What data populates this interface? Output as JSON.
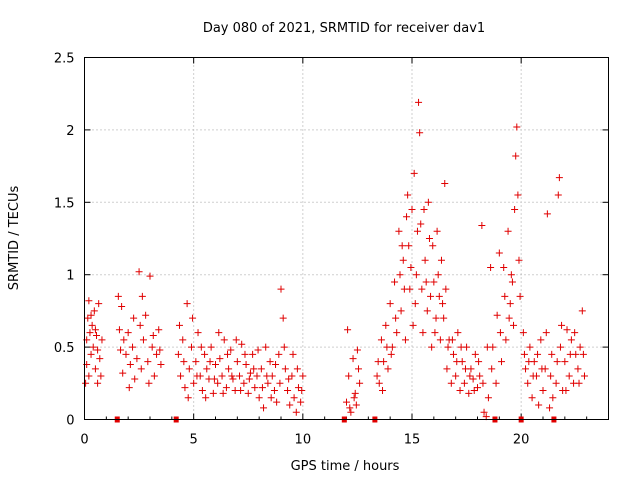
{
  "chart_data": {
    "type": "scatter",
    "title": "Day 080 of 2021, SRMTID for receiver dav1",
    "xlabel": "GPS time / hours",
    "ylabel": "SRMTID / TECUs",
    "xlim": [
      0,
      24
    ],
    "ylim": [
      0,
      2.5
    ],
    "x_ticks": [
      0,
      5,
      10,
      15,
      20
    ],
    "x_tick_labels": [
      "0",
      "5",
      "10",
      "15",
      "20"
    ],
    "y_ticks": [
      0,
      0.5,
      1,
      1.5,
      2,
      2.5
    ],
    "y_tick_labels": [
      "0",
      "0.5",
      "1",
      "1.5",
      "2",
      "2.5"
    ],
    "grid": true,
    "marker": "+",
    "color": "#e00000",
    "series": [
      {
        "name": "dav1",
        "points": [
          [
            0.05,
            0.25
          ],
          [
            0.1,
            0.55
          ],
          [
            0.15,
            0.7
          ],
          [
            0.2,
            0.82
          ],
          [
            0.25,
            0.6
          ],
          [
            0.3,
            0.45
          ],
          [
            0.35,
            0.65
          ],
          [
            0.4,
            0.5
          ],
          [
            0.45,
            0.75
          ],
          [
            0.5,
            0.35
          ],
          [
            0.55,
            0.58
          ],
          [
            0.6,
            0.48
          ],
          [
            0.65,
            0.8
          ],
          [
            0.7,
            0.42
          ],
          [
            0.75,
            0.3
          ],
          [
            0.8,
            0.55
          ],
          [
            0.1,
            0.38
          ],
          [
            0.2,
            0.3
          ],
          [
            0.3,
            0.72
          ],
          [
            0.5,
            0.62
          ],
          [
            0.6,
            0.25
          ],
          [
            1.5,
            0.0
          ],
          [
            1.55,
            0.85
          ],
          [
            1.6,
            0.62
          ],
          [
            1.65,
            0.48
          ],
          [
            1.7,
            0.78
          ],
          [
            1.8,
            0.55
          ],
          [
            1.9,
            0.45
          ],
          [
            2.0,
            0.6
          ],
          [
            2.1,
            0.38
          ],
          [
            2.2,
            0.5
          ],
          [
            2.3,
            0.28
          ],
          [
            2.4,
            0.42
          ],
          [
            2.5,
            1.02
          ],
          [
            2.55,
            0.65
          ],
          [
            2.6,
            0.35
          ],
          [
            2.7,
            0.55
          ],
          [
            2.8,
            0.72
          ],
          [
            2.9,
            0.4
          ],
          [
            3.0,
            0.99
          ],
          [
            3.1,
            0.5
          ],
          [
            3.2,
            0.3
          ],
          [
            3.3,
            0.45
          ],
          [
            3.4,
            0.62
          ],
          [
            3.5,
            0.38
          ],
          [
            1.75,
            0.32
          ],
          [
            2.05,
            0.22
          ],
          [
            2.25,
            0.7
          ],
          [
            2.65,
            0.85
          ],
          [
            2.95,
            0.25
          ],
          [
            3.15,
            0.58
          ],
          [
            3.45,
            0.48
          ],
          [
            4.2,
            0.0
          ],
          [
            4.3,
            0.45
          ],
          [
            4.4,
            0.3
          ],
          [
            4.5,
            0.55
          ],
          [
            4.6,
            0.22
          ],
          [
            4.7,
            0.8
          ],
          [
            4.8,
            0.35
          ],
          [
            4.9,
            0.5
          ],
          [
            5.0,
            0.25
          ],
          [
            5.1,
            0.4
          ],
          [
            5.2,
            0.6
          ],
          [
            5.3,
            0.3
          ],
          [
            5.4,
            0.2
          ],
          [
            5.5,
            0.45
          ],
          [
            5.6,
            0.35
          ],
          [
            5.7,
            0.28
          ],
          [
            5.8,
            0.5
          ],
          [
            5.9,
            0.18
          ],
          [
            6.0,
            0.38
          ],
          [
            6.1,
            0.25
          ],
          [
            6.2,
            0.42
          ],
          [
            6.3,
            0.3
          ],
          [
            6.4,
            0.55
          ],
          [
            6.5,
            0.22
          ],
          [
            6.6,
            0.35
          ],
          [
            6.7,
            0.48
          ],
          [
            6.8,
            0.28
          ],
          [
            6.9,
            0.2
          ],
          [
            7.0,
            0.4
          ],
          [
            7.1,
            0.3
          ],
          [
            7.2,
            0.52
          ],
          [
            7.3,
            0.25
          ],
          [
            7.4,
            0.38
          ],
          [
            7.5,
            0.18
          ],
          [
            7.6,
            0.32
          ],
          [
            7.7,
            0.45
          ],
          [
            7.8,
            0.22
          ],
          [
            7.9,
            0.3
          ],
          [
            8.0,
            0.15
          ],
          [
            8.1,
            0.35
          ],
          [
            8.2,
            0.08
          ],
          [
            8.3,
            0.5
          ],
          [
            8.4,
            0.25
          ],
          [
            8.5,
            0.4
          ],
          [
            8.6,
            0.3
          ],
          [
            8.7,
            0.2
          ],
          [
            8.8,
            0.12
          ],
          [
            8.9,
            0.45
          ],
          [
            9.0,
            0.9
          ],
          [
            9.1,
            0.7
          ],
          [
            9.2,
            0.35
          ],
          [
            9.3,
            0.2
          ],
          [
            9.4,
            0.1
          ],
          [
            9.5,
            0.3
          ],
          [
            9.6,
            0.15
          ],
          [
            9.7,
            0.05
          ],
          [
            9.8,
            0.22
          ],
          [
            9.9,
            0.12
          ],
          [
            10.0,
            0.3
          ],
          [
            4.35,
            0.65
          ],
          [
            4.55,
            0.4
          ],
          [
            4.75,
            0.15
          ],
          [
            4.95,
            0.7
          ],
          [
            5.15,
            0.3
          ],
          [
            5.35,
            0.5
          ],
          [
            5.55,
            0.15
          ],
          [
            5.75,
            0.4
          ],
          [
            5.95,
            0.28
          ],
          [
            6.15,
            0.6
          ],
          [
            6.35,
            0.18
          ],
          [
            6.55,
            0.45
          ],
          [
            6.75,
            0.3
          ],
          [
            6.95,
            0.55
          ],
          [
            7.15,
            0.2
          ],
          [
            7.35,
            0.45
          ],
          [
            7.55,
            0.28
          ],
          [
            7.75,
            0.35
          ],
          [
            7.95,
            0.48
          ],
          [
            8.15,
            0.22
          ],
          [
            8.35,
            0.3
          ],
          [
            8.55,
            0.15
          ],
          [
            8.75,
            0.38
          ],
          [
            8.95,
            0.25
          ],
          [
            9.15,
            0.5
          ],
          [
            9.35,
            0.28
          ],
          [
            9.55,
            0.45
          ],
          [
            9.75,
            0.35
          ],
          [
            9.95,
            0.2
          ],
          [
            11.9,
            0.0
          ],
          [
            12.0,
            0.12
          ],
          [
            12.05,
            0.62
          ],
          [
            12.1,
            0.3
          ],
          [
            12.2,
            0.05
          ],
          [
            12.3,
            0.42
          ],
          [
            12.4,
            0.18
          ],
          [
            12.5,
            0.48
          ],
          [
            12.6,
            0.25
          ],
          [
            12.15,
            0.08
          ],
          [
            12.35,
            0.15
          ],
          [
            12.45,
            0.1
          ],
          [
            12.55,
            0.35
          ],
          [
            13.3,
            0.0
          ],
          [
            13.4,
            0.3
          ],
          [
            13.5,
            0.25
          ],
          [
            13.6,
            0.55
          ],
          [
            13.7,
            0.4
          ],
          [
            13.8,
            0.65
          ],
          [
            13.9,
            0.35
          ],
          [
            14.0,
            0.8
          ],
          [
            14.1,
            0.5
          ],
          [
            14.2,
            0.95
          ],
          [
            14.3,
            0.6
          ],
          [
            14.4,
            1.3
          ],
          [
            14.5,
            0.75
          ],
          [
            14.6,
            1.1
          ],
          [
            14.7,
            0.55
          ],
          [
            14.8,
            1.55
          ],
          [
            14.9,
            0.9
          ],
          [
            15.0,
            1.45
          ],
          [
            15.05,
            0.65
          ],
          [
            15.1,
            1.7
          ],
          [
            15.15,
            0.8
          ],
          [
            15.2,
            1.0
          ],
          [
            15.25,
            1.3
          ],
          [
            15.3,
            2.19
          ],
          [
            15.35,
            1.98
          ],
          [
            15.4,
            1.35
          ],
          [
            15.45,
            0.9
          ],
          [
            15.5,
            0.6
          ],
          [
            15.6,
            1.1
          ],
          [
            15.7,
            0.75
          ],
          [
            15.8,
            1.25
          ],
          [
            15.9,
            0.5
          ],
          [
            16.0,
            0.95
          ],
          [
            16.1,
            0.7
          ],
          [
            16.2,
            1.0
          ],
          [
            16.3,
            0.55
          ],
          [
            16.4,
            0.8
          ],
          [
            16.5,
            1.63
          ],
          [
            16.6,
            0.35
          ],
          [
            16.7,
            0.55
          ],
          [
            16.8,
            0.25
          ],
          [
            16.9,
            0.45
          ],
          [
            17.0,
            0.3
          ],
          [
            17.1,
            0.6
          ],
          [
            17.2,
            0.2
          ],
          [
            17.3,
            0.4
          ],
          [
            17.4,
            0.25
          ],
          [
            17.5,
            0.5
          ],
          [
            17.6,
            0.18
          ],
          [
            17.7,
            0.35
          ],
          [
            17.8,
            0.28
          ],
          [
            17.9,
            0.45
          ],
          [
            18.0,
            0.22
          ],
          [
            18.1,
            0.3
          ],
          [
            18.2,
            1.34
          ],
          [
            18.3,
            0.05
          ],
          [
            18.4,
            0.02
          ],
          [
            18.5,
            0.15
          ],
          [
            18.6,
            1.05
          ],
          [
            18.7,
            0.5
          ],
          [
            18.8,
            0.0
          ],
          [
            18.9,
            0.72
          ],
          [
            19.0,
            1.15
          ],
          [
            19.1,
            0.4
          ],
          [
            19.2,
            1.05
          ],
          [
            19.3,
            0.55
          ],
          [
            19.4,
            1.3
          ],
          [
            19.5,
            0.8
          ],
          [
            19.6,
            0.95
          ],
          [
            19.7,
            1.45
          ],
          [
            19.75,
            1.82
          ],
          [
            19.8,
            2.02
          ],
          [
            19.85,
            1.55
          ],
          [
            19.9,
            1.1
          ],
          [
            20.0,
            0.0
          ],
          [
            20.1,
            0.6
          ],
          [
            20.2,
            0.35
          ],
          [
            20.3,
            0.25
          ],
          [
            20.4,
            0.5
          ],
          [
            20.5,
            0.15
          ],
          [
            20.6,
            0.4
          ],
          [
            20.7,
            0.3
          ],
          [
            20.8,
            0.1
          ],
          [
            20.9,
            0.55
          ],
          [
            21.0,
            0.2
          ],
          [
            21.1,
            0.35
          ],
          [
            21.2,
            1.42
          ],
          [
            21.3,
            0.08
          ],
          [
            21.4,
            0.45
          ],
          [
            21.5,
            0.0
          ],
          [
            21.6,
            0.25
          ],
          [
            21.7,
            1.55
          ],
          [
            21.75,
            1.67
          ],
          [
            21.8,
            0.5
          ],
          [
            21.9,
            0.2
          ],
          [
            22.0,
            0.4
          ],
          [
            22.1,
            0.62
          ],
          [
            22.2,
            0.3
          ],
          [
            22.3,
            0.55
          ],
          [
            22.4,
            0.25
          ],
          [
            22.5,
            0.45
          ],
          [
            22.6,
            0.35
          ],
          [
            22.7,
            0.5
          ],
          [
            22.8,
            0.75
          ],
          [
            22.9,
            0.3
          ],
          [
            13.45,
            0.4
          ],
          [
            13.65,
            0.2
          ],
          [
            13.85,
            0.5
          ],
          [
            14.05,
            0.45
          ],
          [
            14.25,
            0.7
          ],
          [
            14.45,
            1.0
          ],
          [
            14.55,
            1.2
          ],
          [
            14.65,
            0.9
          ],
          [
            14.75,
            1.4
          ],
          [
            14.85,
            1.2
          ],
          [
            14.95,
            1.05
          ],
          [
            15.55,
            1.45
          ],
          [
            15.65,
            0.95
          ],
          [
            15.75,
            1.5
          ],
          [
            15.85,
            0.85
          ],
          [
            15.95,
            1.2
          ],
          [
            16.05,
            0.6
          ],
          [
            16.15,
            1.3
          ],
          [
            16.25,
            0.85
          ],
          [
            16.35,
            1.1
          ],
          [
            16.45,
            0.7
          ],
          [
            16.55,
            0.9
          ],
          [
            16.65,
            0.5
          ],
          [
            16.85,
            0.55
          ],
          [
            17.05,
            0.4
          ],
          [
            17.25,
            0.5
          ],
          [
            17.45,
            0.35
          ],
          [
            17.65,
            0.3
          ],
          [
            17.85,
            0.2
          ],
          [
            18.05,
            0.4
          ],
          [
            18.25,
            0.25
          ],
          [
            18.45,
            0.5
          ],
          [
            18.65,
            0.35
          ],
          [
            18.85,
            0.25
          ],
          [
            19.05,
            0.6
          ],
          [
            19.25,
            0.85
          ],
          [
            19.45,
            0.7
          ],
          [
            19.55,
            1.0
          ],
          [
            19.65,
            0.65
          ],
          [
            19.95,
            0.85
          ],
          [
            20.15,
            0.45
          ],
          [
            20.35,
            0.4
          ],
          [
            20.55,
            0.3
          ],
          [
            20.75,
            0.45
          ],
          [
            20.95,
            0.35
          ],
          [
            21.15,
            0.6
          ],
          [
            21.35,
            0.3
          ],
          [
            21.45,
            0.15
          ],
          [
            21.65,
            0.4
          ],
          [
            21.85,
            0.65
          ],
          [
            22.05,
            0.2
          ],
          [
            22.25,
            0.45
          ],
          [
            22.45,
            0.6
          ],
          [
            22.65,
            0.25
          ],
          [
            22.85,
            0.45
          ]
        ]
      }
    ]
  }
}
